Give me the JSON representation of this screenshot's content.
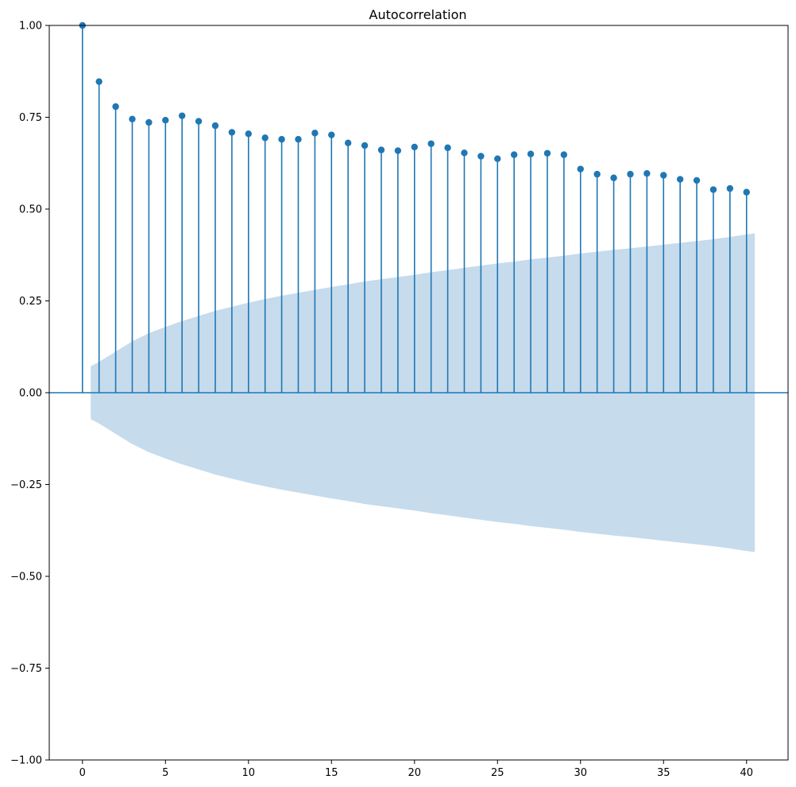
{
  "chart_data": {
    "type": "stem",
    "title": "Autocorrelation",
    "xlabel": "",
    "ylabel": "",
    "xlim": [
      -2,
      42.5
    ],
    "ylim": [
      -1.0,
      1.0
    ],
    "x_ticks": [
      0,
      5,
      10,
      15,
      20,
      25,
      30,
      35,
      40
    ],
    "y_ticks": [
      -1.0,
      -0.75,
      -0.5,
      -0.25,
      0.0,
      0.25,
      0.5,
      0.75,
      1.0
    ],
    "x_tick_labels": [
      "0",
      "5",
      "10",
      "15",
      "20",
      "25",
      "30",
      "35",
      "40"
    ],
    "y_tick_labels": [
      "−1.00",
      "−0.75",
      "−0.50",
      "−0.25",
      "0.00",
      "0.25",
      "0.50",
      "0.75",
      "1.00"
    ],
    "grid": false,
    "series": [
      {
        "lags": [
          0,
          1,
          2,
          3,
          4,
          5,
          6,
          7,
          8,
          9,
          10,
          11,
          12,
          13,
          14,
          15,
          16,
          17,
          18,
          19,
          20,
          21,
          22,
          23,
          24,
          25,
          26,
          27,
          28,
          29,
          30,
          31,
          32,
          33,
          34,
          35,
          36,
          37,
          38,
          39,
          40
        ],
        "values": [
          1.0,
          0.847,
          0.779,
          0.745,
          0.736,
          0.742,
          0.754,
          0.739,
          0.727,
          0.709,
          0.705,
          0.694,
          0.69,
          0.69,
          0.707,
          0.702,
          0.68,
          0.673,
          0.661,
          0.659,
          0.669,
          0.678,
          0.667,
          0.653,
          0.644,
          0.637,
          0.648,
          0.65,
          0.652,
          0.648,
          0.609,
          0.595,
          0.585,
          0.595,
          0.597,
          0.592,
          0.581,
          0.578,
          0.553,
          0.556,
          0.546
        ]
      }
    ],
    "confidence_band": {
      "x": [
        0.5,
        1,
        2,
        3,
        4,
        5,
        6,
        7,
        8,
        9,
        10,
        11,
        12,
        13,
        14,
        15,
        16,
        17,
        18,
        19,
        20,
        21,
        22,
        23,
        24,
        25,
        26,
        27,
        28,
        29,
        30,
        31,
        32,
        33,
        34,
        35,
        36,
        37,
        38,
        39,
        40,
        40.5
      ],
      "upper": [
        0.072,
        0.084,
        0.112,
        0.14,
        0.162,
        0.179,
        0.195,
        0.209,
        0.223,
        0.234,
        0.245,
        0.255,
        0.264,
        0.272,
        0.28,
        0.288,
        0.295,
        0.303,
        0.309,
        0.315,
        0.321,
        0.328,
        0.334,
        0.34,
        0.346,
        0.352,
        0.357,
        0.363,
        0.368,
        0.373,
        0.379,
        0.384,
        0.389,
        0.393,
        0.398,
        0.403,
        0.408,
        0.413,
        0.418,
        0.424,
        0.431,
        0.434
      ],
      "color": "#c6dbec"
    },
    "colors": {
      "stem": "#1f77b4",
      "marker": "#1f77b4",
      "band": "#c6dbec"
    }
  }
}
